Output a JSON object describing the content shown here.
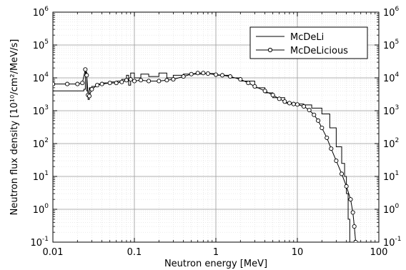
{
  "chart_data": {
    "type": "line",
    "xlabel": "Neutron energy [MeV]",
    "ylabel": "Neutron flux density [10¹⁰/cm²/MeV/s]",
    "x_scale": "log",
    "y_scale": "log",
    "xlim": [
      0.01,
      100
    ],
    "ylim": [
      0.1,
      1000000
    ],
    "grid": true,
    "legend_position": "top-right",
    "x_tick_labels": [
      "0.01",
      "0.1",
      "1",
      "10",
      "100"
    ],
    "x_tick_values": [
      0.01,
      0.1,
      1,
      10,
      100
    ],
    "y_tick_bases": [
      "10",
      "10",
      "10",
      "10",
      "10",
      "10",
      "10",
      "10"
    ],
    "y_tick_exponents": [
      "-1",
      "0",
      "1",
      "2",
      "3",
      "4",
      "5",
      "6"
    ],
    "y_tick_values": [
      0.1,
      1,
      10,
      100,
      1000,
      10000,
      100000,
      1000000
    ],
    "series": [
      {
        "name": "McDeLi",
        "style": "step",
        "color": "#000000",
        "points": [
          [
            0.01,
            4000
          ],
          [
            0.02,
            4000
          ],
          [
            0.024,
            4500
          ],
          [
            0.025,
            15000
          ],
          [
            0.026,
            4000
          ],
          [
            0.027,
            2200
          ],
          [
            0.028,
            5000
          ],
          [
            0.03,
            5500
          ],
          [
            0.035,
            6500
          ],
          [
            0.04,
            7000
          ],
          [
            0.05,
            7500
          ],
          [
            0.06,
            8000
          ],
          [
            0.07,
            9000
          ],
          [
            0.08,
            12000
          ],
          [
            0.085,
            6000
          ],
          [
            0.09,
            14000
          ],
          [
            0.1,
            10000
          ],
          [
            0.12,
            13000
          ],
          [
            0.15,
            11000
          ],
          [
            0.2,
            14000
          ],
          [
            0.25,
            10000
          ],
          [
            0.3,
            12000
          ],
          [
            0.4,
            13000
          ],
          [
            0.5,
            13000
          ],
          [
            0.7,
            13500
          ],
          [
            1,
            12000
          ],
          [
            1.5,
            10000
          ],
          [
            2,
            8000
          ],
          [
            3,
            5000
          ],
          [
            4,
            3500
          ],
          [
            5,
            2500
          ],
          [
            7,
            1700
          ],
          [
            10,
            1600
          ],
          [
            12,
            1500
          ],
          [
            15,
            1200
          ],
          [
            20,
            800
          ],
          [
            25,
            300
          ],
          [
            30,
            80
          ],
          [
            35,
            25
          ],
          [
            38,
            10
          ],
          [
            40,
            3
          ],
          [
            42,
            0.5
          ],
          [
            44,
            0.1
          ]
        ]
      },
      {
        "name": "McDeLicious",
        "style": "line-markers",
        "color": "#000000",
        "points": [
          [
            0.01,
            6500
          ],
          [
            0.015,
            6500
          ],
          [
            0.02,
            6500
          ],
          [
            0.023,
            7000
          ],
          [
            0.025,
            18000
          ],
          [
            0.026,
            12000
          ],
          [
            0.027,
            3000
          ],
          [
            0.028,
            2800
          ],
          [
            0.03,
            4500
          ],
          [
            0.035,
            6000
          ],
          [
            0.04,
            6500
          ],
          [
            0.05,
            7000
          ],
          [
            0.06,
            7000
          ],
          [
            0.07,
            7500
          ],
          [
            0.08,
            8500
          ],
          [
            0.09,
            9000
          ],
          [
            0.1,
            8000
          ],
          [
            0.12,
            8500
          ],
          [
            0.15,
            8000
          ],
          [
            0.2,
            8000
          ],
          [
            0.25,
            8500
          ],
          [
            0.3,
            9000
          ],
          [
            0.4,
            11000
          ],
          [
            0.5,
            13000
          ],
          [
            0.6,
            14000
          ],
          [
            0.7,
            14000
          ],
          [
            0.8,
            13500
          ],
          [
            1,
            12500
          ],
          [
            1.2,
            12000
          ],
          [
            1.5,
            11000
          ],
          [
            2,
            9000
          ],
          [
            2.5,
            7000
          ],
          [
            3,
            5500
          ],
          [
            4,
            4000
          ],
          [
            5,
            3000
          ],
          [
            6,
            2300
          ],
          [
            7,
            1900
          ],
          [
            8,
            1700
          ],
          [
            9,
            1600
          ],
          [
            10,
            1550
          ],
          [
            12,
            1350
          ],
          [
            14,
            1050
          ],
          [
            16,
            750
          ],
          [
            18,
            500
          ],
          [
            20,
            300
          ],
          [
            23,
            150
          ],
          [
            26,
            70
          ],
          [
            30,
            30
          ],
          [
            35,
            12
          ],
          [
            40,
            5
          ],
          [
            45,
            2
          ],
          [
            48,
            0.8
          ],
          [
            50,
            0.3
          ],
          [
            52,
            0.1
          ]
        ]
      }
    ]
  }
}
